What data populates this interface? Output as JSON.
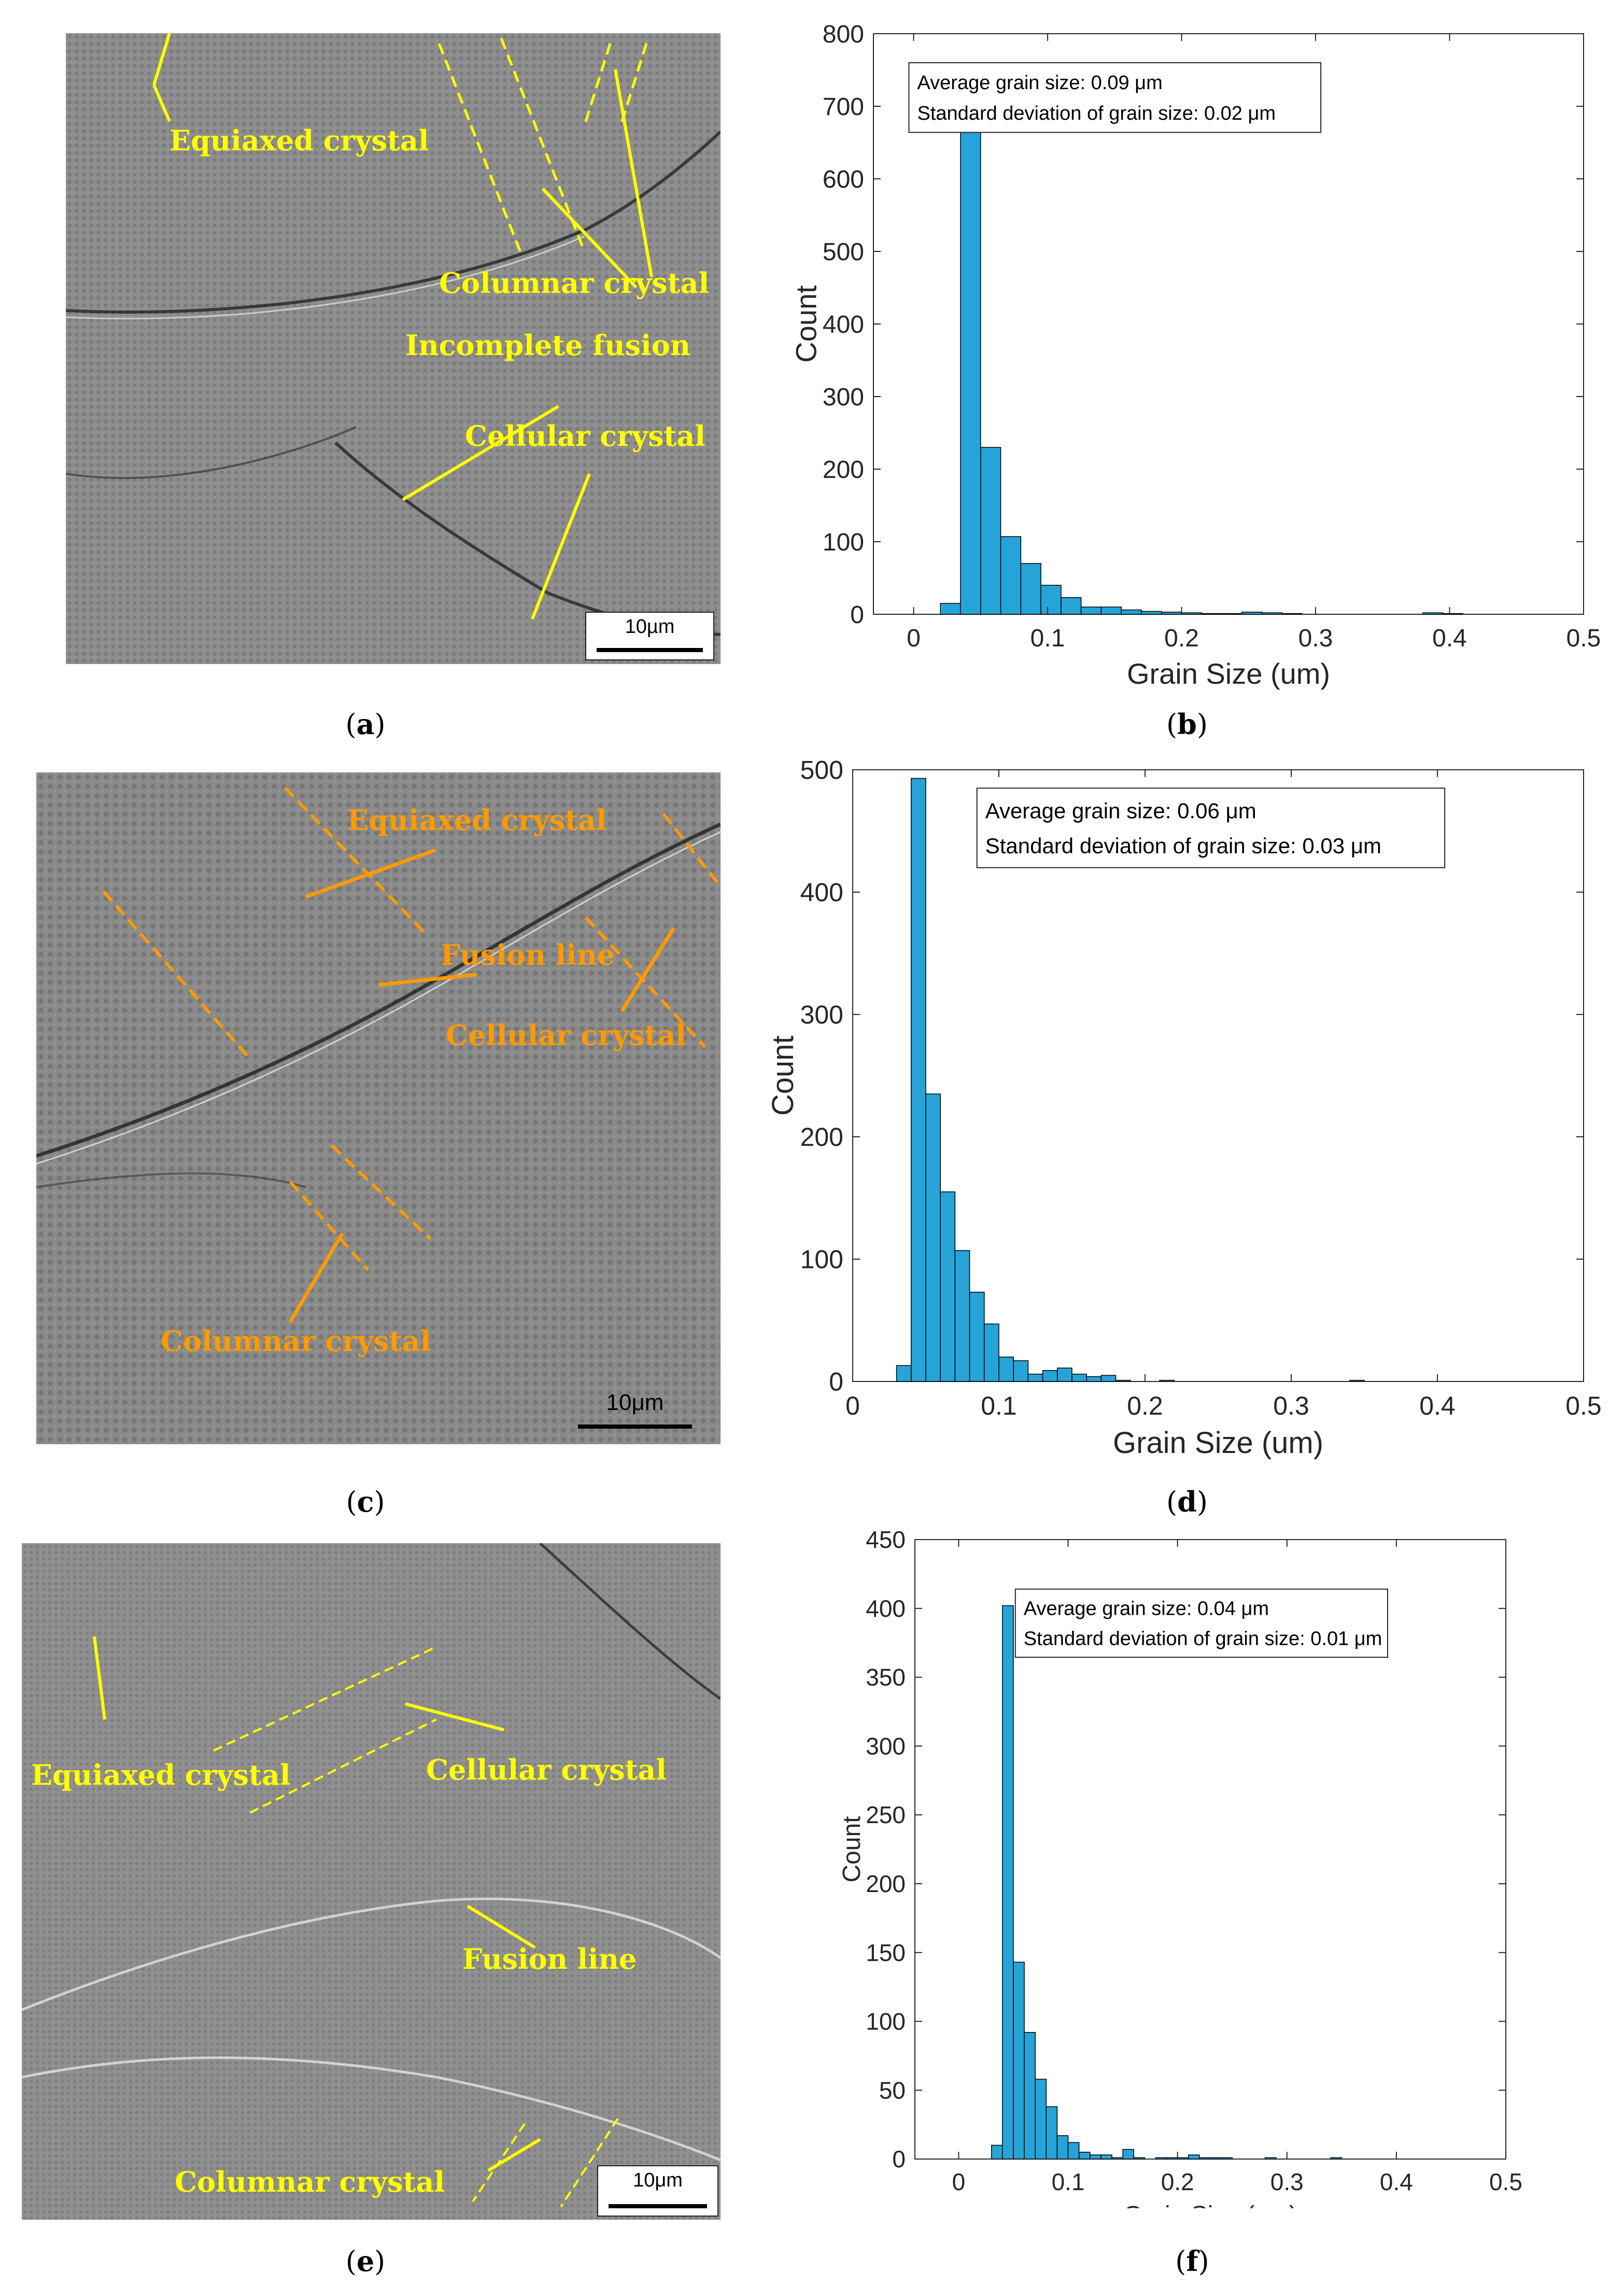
{
  "panels": [
    {
      "caption": "a",
      "scale_bar": "10µm",
      "annotation_color": "#ffff00",
      "labels": [
        "Equiaxed crystal",
        "Columnar crystal",
        "Incomplete fusion",
        "Cellular crystal"
      ]
    },
    {
      "caption": "c",
      "scale_bar": "10μm",
      "annotation_color": "#ff9a00",
      "labels": [
        "Equiaxed crystal",
        "Fusion line",
        "Cellular crystal",
        "Columnar crystal"
      ]
    },
    {
      "caption": "e",
      "scale_bar": "10μm",
      "annotation_color": "#ffff00",
      "labels": [
        "Equiaxed crystal",
        "Cellular crystal",
        "Fusion line",
        "Columnar crystal"
      ]
    }
  ],
  "chart_data": [
    {
      "type": "bar",
      "caption": "b",
      "xlabel": "Grain Size (um)",
      "ylabel": "Count",
      "xlim": [
        -0.03,
        0.5
      ],
      "ylim": [
        0,
        800
      ],
      "xticks": [
        0,
        0.1,
        0.2,
        0.3,
        0.4,
        0.5
      ],
      "yticks": [
        0,
        100,
        200,
        300,
        400,
        500,
        600,
        700,
        800
      ],
      "bin_width": 0.015,
      "bins": [
        0.02,
        0.035,
        0.05,
        0.065,
        0.08,
        0.095,
        0.11,
        0.125,
        0.14,
        0.155,
        0.17,
        0.185,
        0.2,
        0.215,
        0.23,
        0.245,
        0.26,
        0.275,
        0.29,
        0.305,
        0.32,
        0.335,
        0.35,
        0.365,
        0.38,
        0.395
      ],
      "values": [
        15,
        715,
        230,
        107,
        70,
        40,
        23,
        10,
        10,
        6,
        4,
        3,
        2,
        1,
        1,
        3,
        2,
        1,
        0,
        0,
        0,
        0,
        0,
        0,
        2,
        1
      ],
      "bar_color": "#26a4d8",
      "annotations": [
        "Average grain size: 0.09 μm",
        "Standard deviation of grain size: 0.02 μm"
      ]
    },
    {
      "type": "bar",
      "caption": "d",
      "xlabel": "Grain Size (um)",
      "ylabel": "Count",
      "xlim": [
        0,
        0.5
      ],
      "ylim": [
        0,
        500
      ],
      "xticks": [
        0,
        0.1,
        0.2,
        0.3,
        0.4,
        0.5
      ],
      "yticks": [
        0,
        100,
        200,
        300,
        400,
        500
      ],
      "bin_width": 0.01,
      "bins": [
        0.03,
        0.04,
        0.05,
        0.06,
        0.07,
        0.08,
        0.09,
        0.1,
        0.11,
        0.12,
        0.13,
        0.14,
        0.15,
        0.16,
        0.17,
        0.18,
        0.19,
        0.2,
        0.21,
        0.34
      ],
      "values": [
        13,
        493,
        235,
        155,
        107,
        73,
        47,
        20,
        17,
        6,
        9,
        11,
        6,
        4,
        5,
        1,
        0,
        0,
        1,
        1
      ],
      "bar_color": "#26a4d8",
      "annotations": [
        "Average grain size: 0.06 μm",
        "Standard deviation of grain size: 0.03 μm"
      ]
    },
    {
      "type": "bar",
      "caption": "f",
      "xlabel": "Grain Size (um)",
      "ylabel": "Count",
      "xlim": [
        -0.04,
        0.5
      ],
      "ylim": [
        0,
        450
      ],
      "xticks": [
        0,
        0.1,
        0.2,
        0.3,
        0.4,
        0.5
      ],
      "yticks": [
        0,
        50,
        100,
        150,
        200,
        250,
        300,
        350,
        400,
        450
      ],
      "bin_width": 0.01,
      "bins": [
        0.03,
        0.04,
        0.05,
        0.06,
        0.07,
        0.08,
        0.09,
        0.1,
        0.11,
        0.12,
        0.13,
        0.14,
        0.15,
        0.16,
        0.17,
        0.18,
        0.19,
        0.2,
        0.21,
        0.22,
        0.23,
        0.24,
        0.28,
        0.34
      ],
      "values": [
        10,
        402,
        143,
        92,
        58,
        38,
        17,
        12,
        5,
        3,
        3,
        1,
        7,
        1,
        0,
        1,
        1,
        1,
        3,
        1,
        1,
        1,
        1,
        1
      ],
      "bar_color": "#26a4d8",
      "annotations": [
        "Average grain size: 0.04 μm",
        "Standard deviation of grain size: 0.01 μm"
      ]
    }
  ]
}
